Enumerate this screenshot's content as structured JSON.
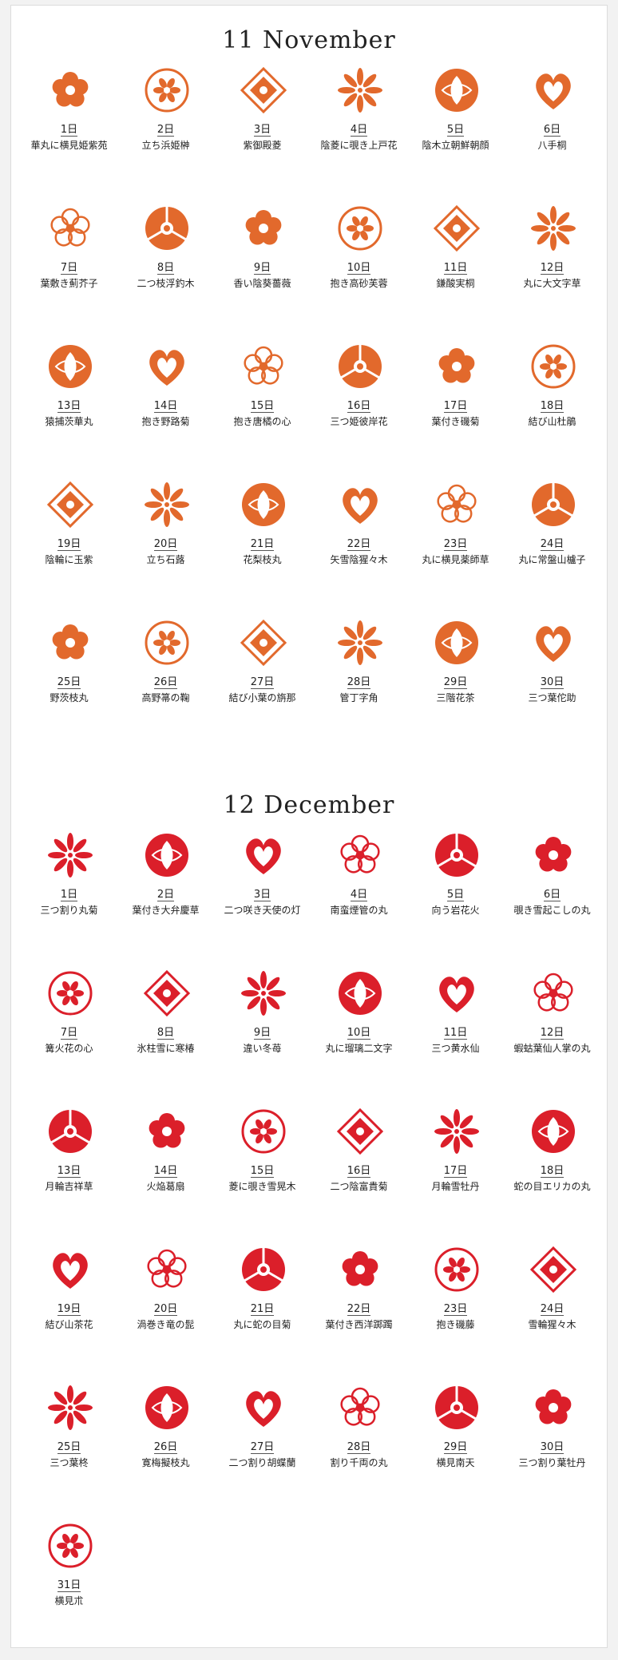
{
  "colors": {
    "november": "#e2692c",
    "december": "#db1f2a"
  },
  "months": [
    {
      "title": "11  November",
      "accent": "november",
      "days": [
        {
          "day": "1日",
          "name": "華丸に横見姫紫苑",
          "icon": "plum-crest-icon"
        },
        {
          "day": "2日",
          "name": "立ち浜姫榊",
          "icon": "sakaki-crest-icon"
        },
        {
          "day": "3日",
          "name": "紫御殿菱",
          "icon": "lily-crest-icon"
        },
        {
          "day": "4日",
          "name": "陰菱に覗き上戸花",
          "icon": "diamond-crest-icon"
        },
        {
          "day": "5日",
          "name": "陰木立朝鮮朝顔",
          "icon": "outline-flower-crest-icon"
        },
        {
          "day": "6日",
          "name": "八手桐",
          "icon": "paulownia-crest-icon"
        },
        {
          "day": "7日",
          "name": "葉敷き薊芥子",
          "icon": "thistle-crest-icon"
        },
        {
          "day": "8日",
          "name": "二つ枝浮釣木",
          "icon": "lantern-crest-icon"
        },
        {
          "day": "9日",
          "name": "香い陰葵薔薇",
          "icon": "rose-crest-icon"
        },
        {
          "day": "10日",
          "name": "抱き高砂芙蓉",
          "icon": "hibiscus-crest-icon"
        },
        {
          "day": "11日",
          "name": "鎌酸実桐",
          "icon": "kiri-crest-icon"
        },
        {
          "day": "12日",
          "name": "丸に大文字草",
          "icon": "saxifrage-crest-icon"
        },
        {
          "day": "13日",
          "name": "猿捕茨華丸",
          "icon": "spiral-crest-icon"
        },
        {
          "day": "14日",
          "name": "抱き野路菊",
          "icon": "chrysanthemum-crest-icon"
        },
        {
          "day": "15日",
          "name": "抱き唐橘の心",
          "icon": "heart-crest-icon"
        },
        {
          "day": "16日",
          "name": "三つ姫彼岸花",
          "icon": "lycoris-crest-icon"
        },
        {
          "day": "17日",
          "name": "葉付き磯菊",
          "icon": "leafy-chrysanthemum-crest-icon"
        },
        {
          "day": "18日",
          "name": "結び山杜鵑",
          "icon": "knot-crest-icon"
        },
        {
          "day": "19日",
          "name": "陰輪に玉紫",
          "icon": "ring-flower-crest-icon"
        },
        {
          "day": "20日",
          "name": "立ち石蕗",
          "icon": "tsuwabuki-crest-icon"
        },
        {
          "day": "21日",
          "name": "花梨枝丸",
          "icon": "quince-crest-icon"
        },
        {
          "day": "22日",
          "name": "矢雪陰猩々木",
          "icon": "snowflake-crest-icon"
        },
        {
          "day": "23日",
          "name": "丸に横見薬師草",
          "icon": "circle-blossom-crest-icon"
        },
        {
          "day": "24日",
          "name": "丸に常盤山櫨子",
          "icon": "berry-crest-icon"
        },
        {
          "day": "25日",
          "name": "野茨枝丸",
          "icon": "wild-rose-crest-icon"
        },
        {
          "day": "26日",
          "name": "高野箒の鞠",
          "icon": "ball-crest-icon"
        },
        {
          "day": "27日",
          "name": "結び小葉の旃那",
          "icon": "loop-knot-crest-icon"
        },
        {
          "day": "28日",
          "name": "管丁字角",
          "icon": "square-clove-crest-icon"
        },
        {
          "day": "29日",
          "name": "三階花茶",
          "icon": "camellia-crest-icon"
        },
        {
          "day": "30日",
          "name": "三つ葉佗助",
          "icon": "wabisuke-crest-icon"
        }
      ]
    },
    {
      "title": "12  December",
      "accent": "december",
      "days": [
        {
          "day": "1日",
          "name": "三つ割り丸菊",
          "icon": "split-chrysanthemum-crest-icon"
        },
        {
          "day": "2日",
          "name": "葉付き大弁慶草",
          "icon": "sedum-crest-icon"
        },
        {
          "day": "3日",
          "name": "二つ咲き天使の灯",
          "icon": "angel-lamp-crest-icon"
        },
        {
          "day": "4日",
          "name": "南蛮煙管の丸",
          "icon": "pipe-flower-crest-icon"
        },
        {
          "day": "5日",
          "name": "向う岩花火",
          "icon": "firework-crest-icon"
        },
        {
          "day": "6日",
          "name": "覗き雪起こしの丸",
          "icon": "snow-peek-crest-icon"
        },
        {
          "day": "7日",
          "name": "篝火花の心",
          "icon": "cyclamen-heart-crest-icon"
        },
        {
          "day": "8日",
          "name": "氷柱雪に寒椿",
          "icon": "hexagon-camellia-crest-icon"
        },
        {
          "day": "9日",
          "name": "違い冬苺",
          "icon": "crossed-strawberry-crest-icon"
        },
        {
          "day": "10日",
          "name": "丸に瑠璃二文字",
          "icon": "bead-circle-crest-icon"
        },
        {
          "day": "11日",
          "name": "三つ黄水仙",
          "icon": "narcissus-crest-icon"
        },
        {
          "day": "12日",
          "name": "蝦蛄葉仙人掌の丸",
          "icon": "cactus-circle-crest-icon"
        },
        {
          "day": "13日",
          "name": "月輪吉祥草",
          "icon": "crescent-grass-crest-icon"
        },
        {
          "day": "14日",
          "name": "火焔葛扇",
          "icon": "fan-crest-icon"
        },
        {
          "day": "15日",
          "name": "菱に覗き雪晃木",
          "icon": "diamond-peek-crest-icon"
        },
        {
          "day": "16日",
          "name": "二つ陰富貴菊",
          "icon": "double-chrysanthemum-crest-icon"
        },
        {
          "day": "17日",
          "name": "月輪雪牡丹",
          "icon": "crescent-snow-crest-icon"
        },
        {
          "day": "18日",
          "name": "蛇の目エリカの丸",
          "icon": "erica-ring-crest-icon"
        },
        {
          "day": "19日",
          "name": "結び山茶花",
          "icon": "sasanqua-knot-crest-icon"
        },
        {
          "day": "20日",
          "name": "渦巻き竜の髭",
          "icon": "swirl-crest-icon"
        },
        {
          "day": "21日",
          "name": "丸に蛇の目菊",
          "icon": "circle-triangle-crest-icon"
        },
        {
          "day": "22日",
          "name": "葉付き西洋踯躅",
          "icon": "azalea-crest-icon"
        },
        {
          "day": "23日",
          "name": "抱き磯藤",
          "icon": "wisteria-crest-icon"
        },
        {
          "day": "24日",
          "name": "雪輪猩々木",
          "icon": "snow-ring-poinsettia-crest-icon"
        },
        {
          "day": "25日",
          "name": "三つ葉柊",
          "icon": "holly-crest-icon"
        },
        {
          "day": "26日",
          "name": "寛梅擬枝丸",
          "icon": "berry-wreath-crest-icon"
        },
        {
          "day": "27日",
          "name": "二つ割り胡蝶蘭",
          "icon": "orchid-split-crest-icon"
        },
        {
          "day": "28日",
          "name": "割り千両の丸",
          "icon": "senryo-split-crest-icon"
        },
        {
          "day": "29日",
          "name": "横見南天",
          "icon": "nandina-crest-icon"
        },
        {
          "day": "30日",
          "name": "三つ割り葉牡丹",
          "icon": "kale-split-crest-icon"
        },
        {
          "day": "31日",
          "name": "横見朮",
          "icon": "atractylodes-crest-icon"
        }
      ]
    }
  ]
}
